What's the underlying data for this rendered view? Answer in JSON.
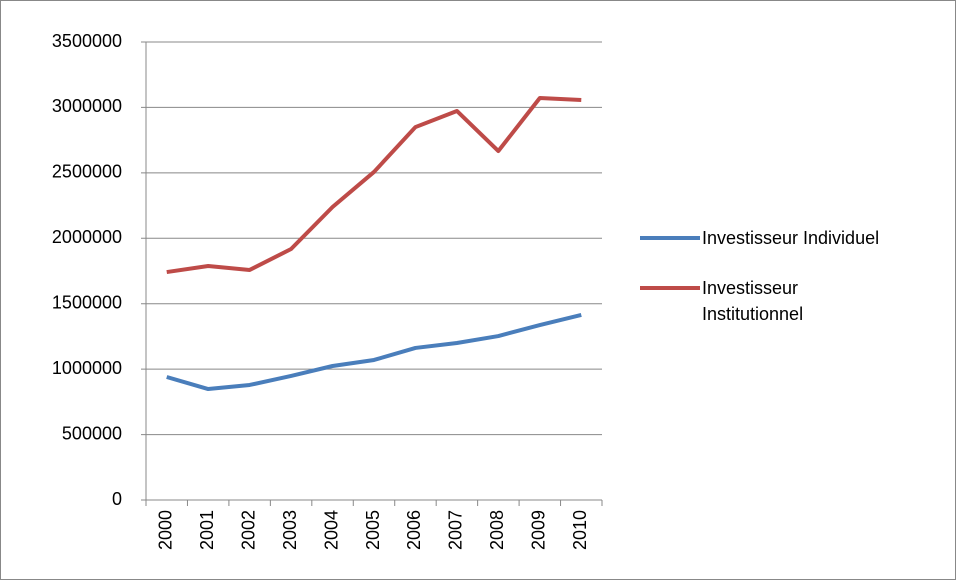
{
  "chart_data": {
    "type": "line",
    "categories": [
      "2000",
      "2001",
      "2002",
      "2003",
      "2004",
      "2005",
      "2006",
      "2007",
      "2008",
      "2009",
      "2010"
    ],
    "series": [
      {
        "name": "Investisseur Individuel",
        "color": "#4a7ebb",
        "values": [
          940000,
          848000,
          879000,
          948000,
          1024000,
          1070000,
          1162000,
          1200000,
          1253000,
          1337000,
          1414000
        ]
      },
      {
        "name": "Investisseur Institutionnel",
        "color": "#be4b48",
        "values": [
          1742000,
          1788000,
          1758000,
          1918000,
          2239000,
          2507000,
          2850000,
          2973000,
          2667000,
          3072000,
          3057000
        ]
      }
    ],
    "ylim": [
      0,
      3500000
    ],
    "yticks": [
      0,
      500000,
      1000000,
      1500000,
      2000000,
      2500000,
      3000000,
      3500000
    ],
    "grid": true,
    "legend": "right"
  }
}
